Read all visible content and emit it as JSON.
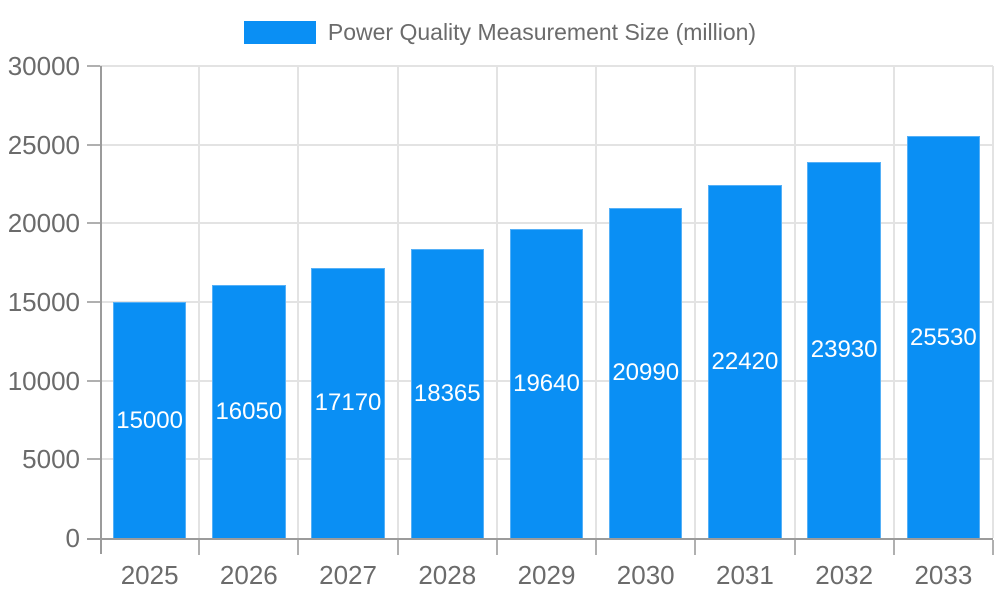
{
  "chart_data": {
    "type": "bar",
    "title": "Power Quality Measurement Size (million)",
    "categories": [
      "2025",
      "2026",
      "2027",
      "2028",
      "2029",
      "2030",
      "2031",
      "2032",
      "2033"
    ],
    "values": [
      15000,
      16050,
      17170,
      18365,
      19640,
      20990,
      22420,
      23930,
      25530
    ],
    "xlabel": "",
    "ylabel": "",
    "ylim": [
      0,
      30000
    ],
    "y_ticks": [
      0,
      5000,
      10000,
      15000,
      20000,
      25000,
      30000
    ],
    "legend": {
      "position": "top-center",
      "label": "Power Quality Measurement Size (million)"
    },
    "grid": {
      "horizontal": true,
      "vertical": true
    },
    "value_labels": {
      "visible": true,
      "placement": "inside-center"
    },
    "colors": {
      "bar": "#0a8ff4",
      "bar_edge": "#55b0f7",
      "bar_label_text": "#ffffff",
      "axis_text": "#6b6b6b",
      "axis_line": "#9b9b9b",
      "tick_mark": "#b0b0b0",
      "gridline": "#e3e3e3",
      "background": "#ffffff"
    }
  }
}
